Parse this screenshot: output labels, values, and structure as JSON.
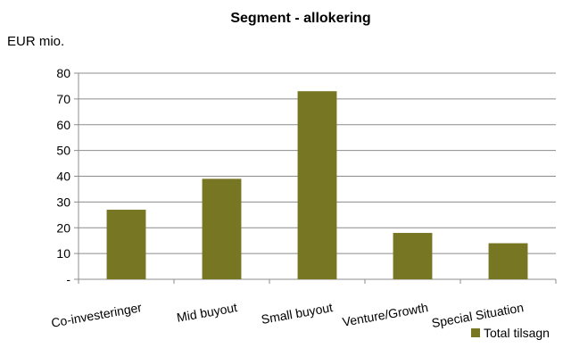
{
  "chart_data": {
    "type": "bar",
    "title": "Segment - allokering",
    "ylabel": "EUR mio.",
    "xlabel": "",
    "categories": [
      "Co-investeringer",
      "Mid buyout",
      "Small buyout",
      "Venture/Growth",
      "Special Situation"
    ],
    "series": [
      {
        "name": "Total tilsagn",
        "values": [
          27,
          39,
          73,
          18,
          14
        ],
        "color": "#777622"
      }
    ],
    "ylim": [
      0,
      80
    ],
    "yticks": [
      0,
      10,
      20,
      30,
      40,
      50,
      60,
      70,
      80
    ],
    "ytick_labels": [
      "-",
      "10",
      "20",
      "30",
      "40",
      "50",
      "60",
      "70",
      "80"
    ],
    "grid": true,
    "legend_position": "bottom-right"
  }
}
